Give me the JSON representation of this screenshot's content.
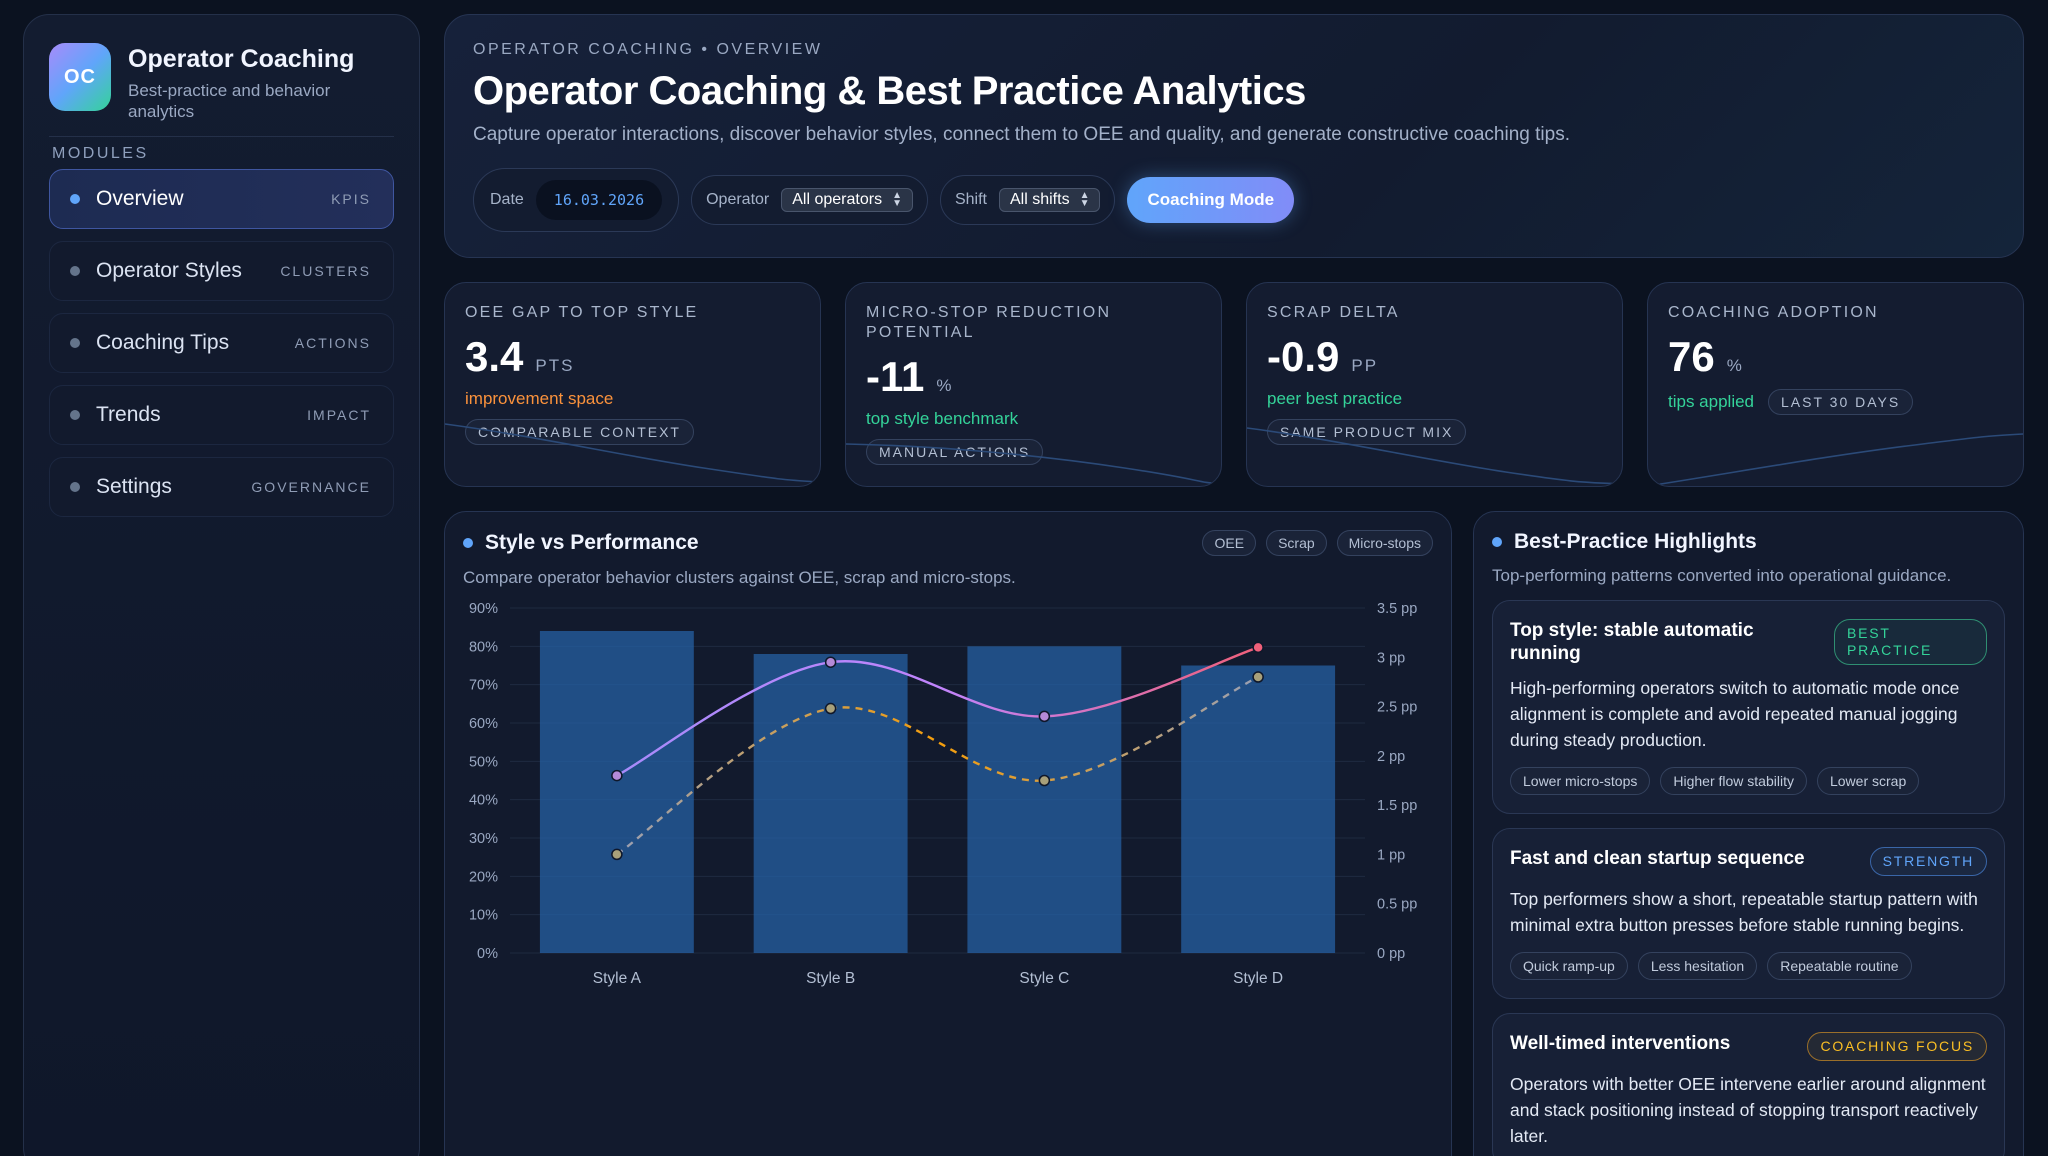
{
  "brand": {
    "logo": "OC",
    "title": "Operator Coaching",
    "subtitle": "Best-practice and behavior analytics"
  },
  "sidebar": {
    "section_label": "MODULES",
    "items": [
      {
        "label": "Overview",
        "tag": "KPIS",
        "active": true
      },
      {
        "label": "Operator Styles",
        "tag": "CLUSTERS"
      },
      {
        "label": "Coaching Tips",
        "tag": "ACTIONS"
      },
      {
        "label": "Trends",
        "tag": "IMPACT"
      },
      {
        "label": "Settings",
        "tag": "GOVERNANCE"
      }
    ]
  },
  "header": {
    "breadcrumb": "OPERATOR COACHING • OVERVIEW",
    "title": "Operator Coaching & Best Practice Analytics",
    "subtitle": "Capture operator interactions, discover behavior styles, connect them to OEE and quality, and generate constructive coaching tips.",
    "date_label": "Date",
    "date_value": "16.03.2026",
    "operator_label": "Operator",
    "operator_value": "All operators",
    "shift_label": "Shift",
    "shift_value": "All shifts",
    "coaching_button": "Coaching Mode"
  },
  "kpis": [
    {
      "label": "OEE GAP TO TOP STYLE",
      "value": "3.4",
      "unit": "PTS",
      "note": "improvement space",
      "chip": "COMPARABLE CONTEXT"
    },
    {
      "label": "MICRO-STOP REDUCTION POTENTIAL",
      "value": "-11",
      "unit": "%",
      "note": "top style benchmark",
      "chip": "MANUAL ACTIONS"
    },
    {
      "label": "SCRAP DELTA",
      "value": "-0.9",
      "unit": "PP",
      "note": "peer best practice",
      "chip": "SAME PRODUCT MIX"
    },
    {
      "label": "COACHING ADOPTION",
      "value": "76",
      "unit": "%",
      "note": "tips applied",
      "chip": "LAST 30 DAYS"
    }
  ],
  "chart_panel": {
    "title": "Style vs Performance",
    "subtitle": "Compare operator behavior clusters against OEE, scrap and micro-stops.",
    "legend": [
      "OEE",
      "Scrap",
      "Micro-stops"
    ]
  },
  "chart_data": {
    "type": "bar",
    "categories": [
      "Style A",
      "Style B",
      "Style C",
      "Style D"
    ],
    "series": [
      {
        "name": "OEE",
        "type": "bar",
        "axis": "left",
        "values": [
          84,
          78,
          80,
          75
        ],
        "color": "#2563a8"
      },
      {
        "name": "Scrap",
        "type": "line",
        "axis": "right",
        "values": [
          1.0,
          2.48,
          1.75,
          2.8
        ],
        "color": "#fb923c",
        "dashed": true
      },
      {
        "name": "Micro-stops",
        "type": "line",
        "axis": "right",
        "values": [
          1.8,
          2.95,
          2.4,
          3.1
        ],
        "color": "#f0607a"
      }
    ],
    "yleft": {
      "min": 0,
      "max": 90,
      "ticks": [
        "0%",
        "10%",
        "20%",
        "30%",
        "40%",
        "50%",
        "60%",
        "70%",
        "80%",
        "90%"
      ]
    },
    "yright": {
      "min": 0,
      "max": 3.5,
      "ticks": [
        "0 pp",
        "0.5 pp",
        "1 pp",
        "1.5 pp",
        "2 pp",
        "2.5 pp",
        "3 pp",
        "3.5 pp"
      ]
    }
  },
  "highlights": {
    "title": "Best-Practice Highlights",
    "subtitle": "Top-performing patterns converted into operational guidance.",
    "cards": [
      {
        "title": "Top style: stable automatic running",
        "badge": "BEST PRACTICE",
        "body": "High-performing operators switch to automatic mode once alignment is complete and avoid repeated manual jogging during steady production.",
        "tags": [
          "Lower micro-stops",
          "Higher flow stability",
          "Lower scrap"
        ]
      },
      {
        "title": "Fast and clean startup sequence",
        "badge": "STRENGTH",
        "body": "Top performers show a short, repeatable startup pattern with minimal extra button presses before stable running begins.",
        "tags": [
          "Quick ramp-up",
          "Less hesitation",
          "Repeatable routine"
        ]
      },
      {
        "title": "Well-timed interventions",
        "badge": "COACHING FOCUS",
        "body": "Operators with better OEE intervene earlier around alignment and stack positioning instead of stopping transport reactively later."
      }
    ]
  }
}
